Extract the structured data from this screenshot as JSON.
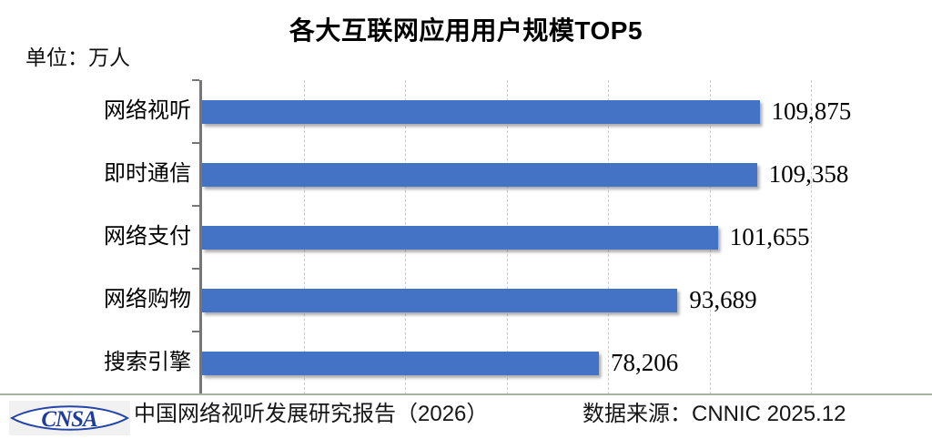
{
  "title": "各大互联网应用用户规模TOP5",
  "unit_label": "单位：万人",
  "footer": {
    "logo_text": "CNSA",
    "report": "中国网络视听发展研究报告（2026）",
    "source": "数据来源：CNNIC 2025.12"
  },
  "colors": {
    "bar": "#4472C4",
    "gridline": "#C9C9C9",
    "axis": "#767676",
    "divider": "#A3B5A0",
    "logo_blue": "#1C3C9E"
  },
  "chart_data": {
    "type": "bar",
    "orientation": "horizontal",
    "title": "各大互联网应用用户规模TOP5",
    "unit": "万人",
    "categories": [
      "网络视听",
      "即时通信",
      "网络支付",
      "网络购物",
      "搜索引擎"
    ],
    "values": [
      109875,
      109358,
      101655,
      93689,
      78206
    ],
    "value_labels": [
      "109,875",
      "109,358",
      "101,655",
      "93,689",
      "78,206"
    ],
    "xlim": [
      0,
      120000
    ],
    "grid_interval": 20000,
    "grid": true,
    "legend": false,
    "source": "CNNIC 2025.12"
  }
}
